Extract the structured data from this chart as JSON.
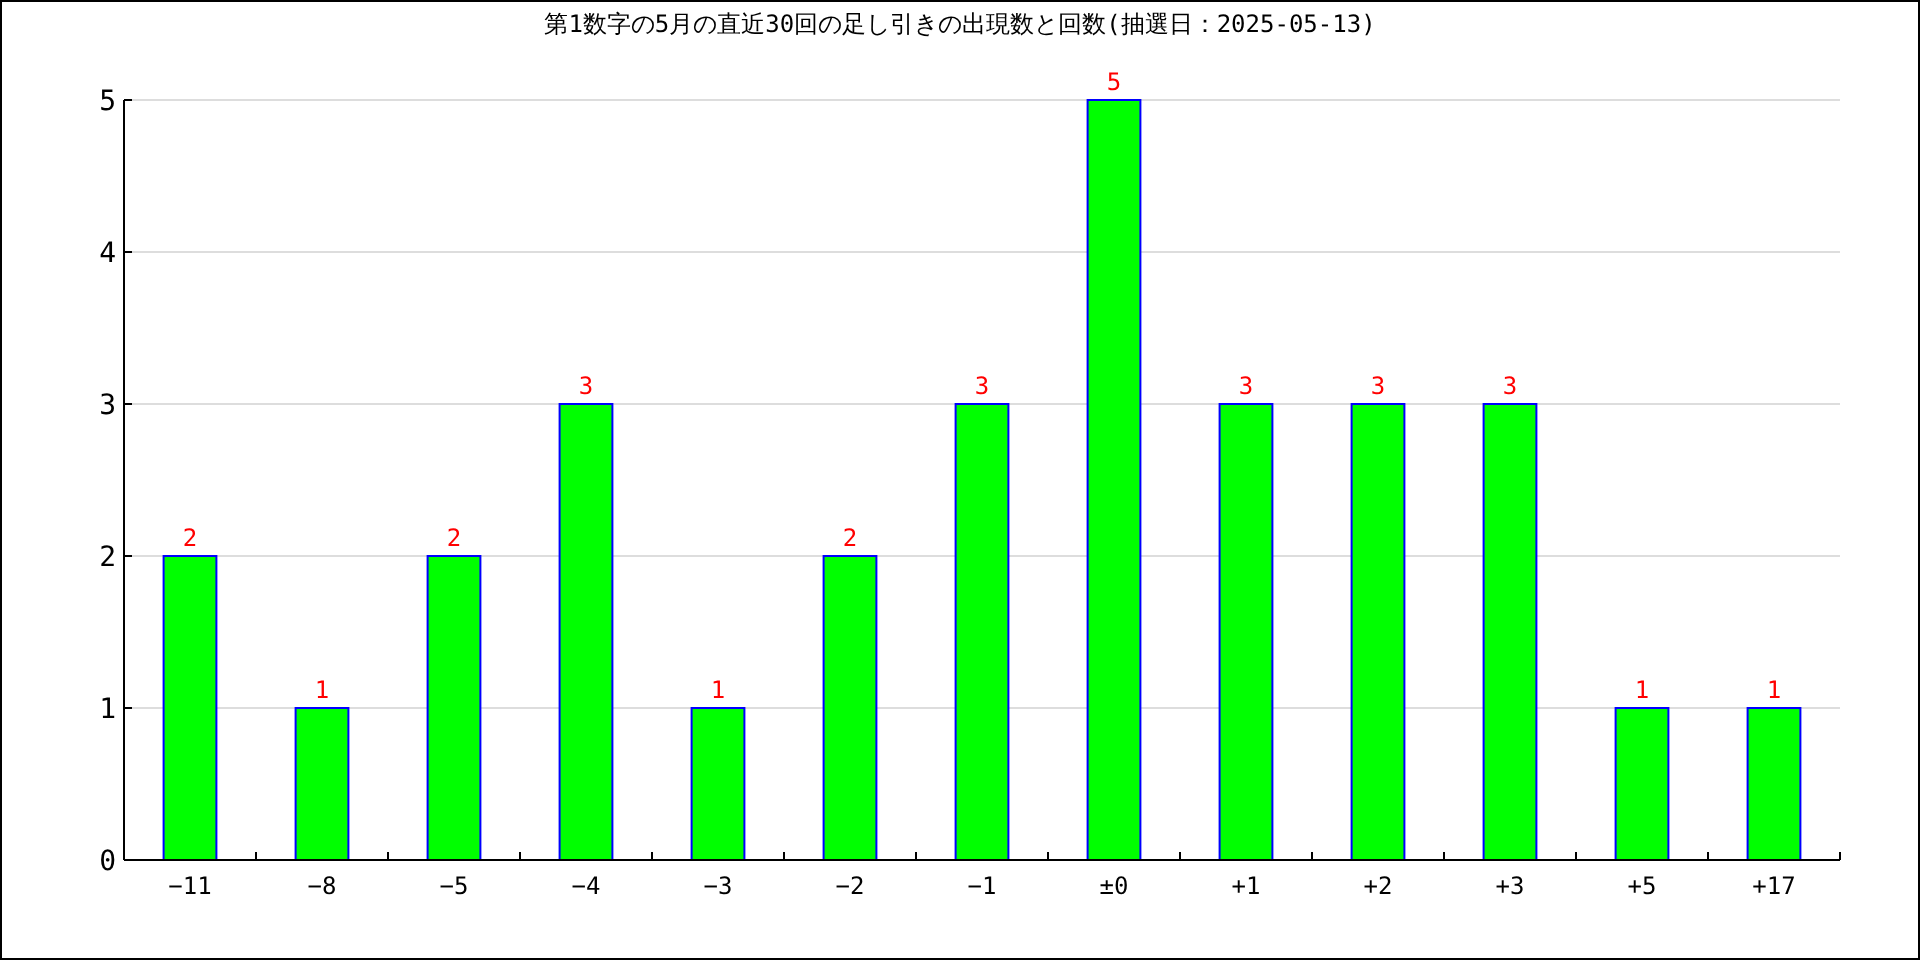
{
  "chart_data": {
    "type": "bar",
    "title": "第1数字の5月の直近30回の足し引きの出現数と回数(抽選日：2025-05-13)",
    "categories": [
      "−11",
      "−8",
      "−5",
      "−4",
      "−3",
      "−2",
      "−1",
      "±0",
      "+1",
      "+2",
      "+3",
      "+5",
      "+17"
    ],
    "values": [
      2,
      1,
      2,
      3,
      1,
      2,
      3,
      5,
      3,
      3,
      3,
      1,
      1
    ],
    "color": "#00ff00",
    "ylim": [
      0,
      5
    ],
    "yticks": [
      0,
      1,
      2,
      3,
      4,
      5
    ],
    "grid": "y",
    "data_labels": true
  }
}
